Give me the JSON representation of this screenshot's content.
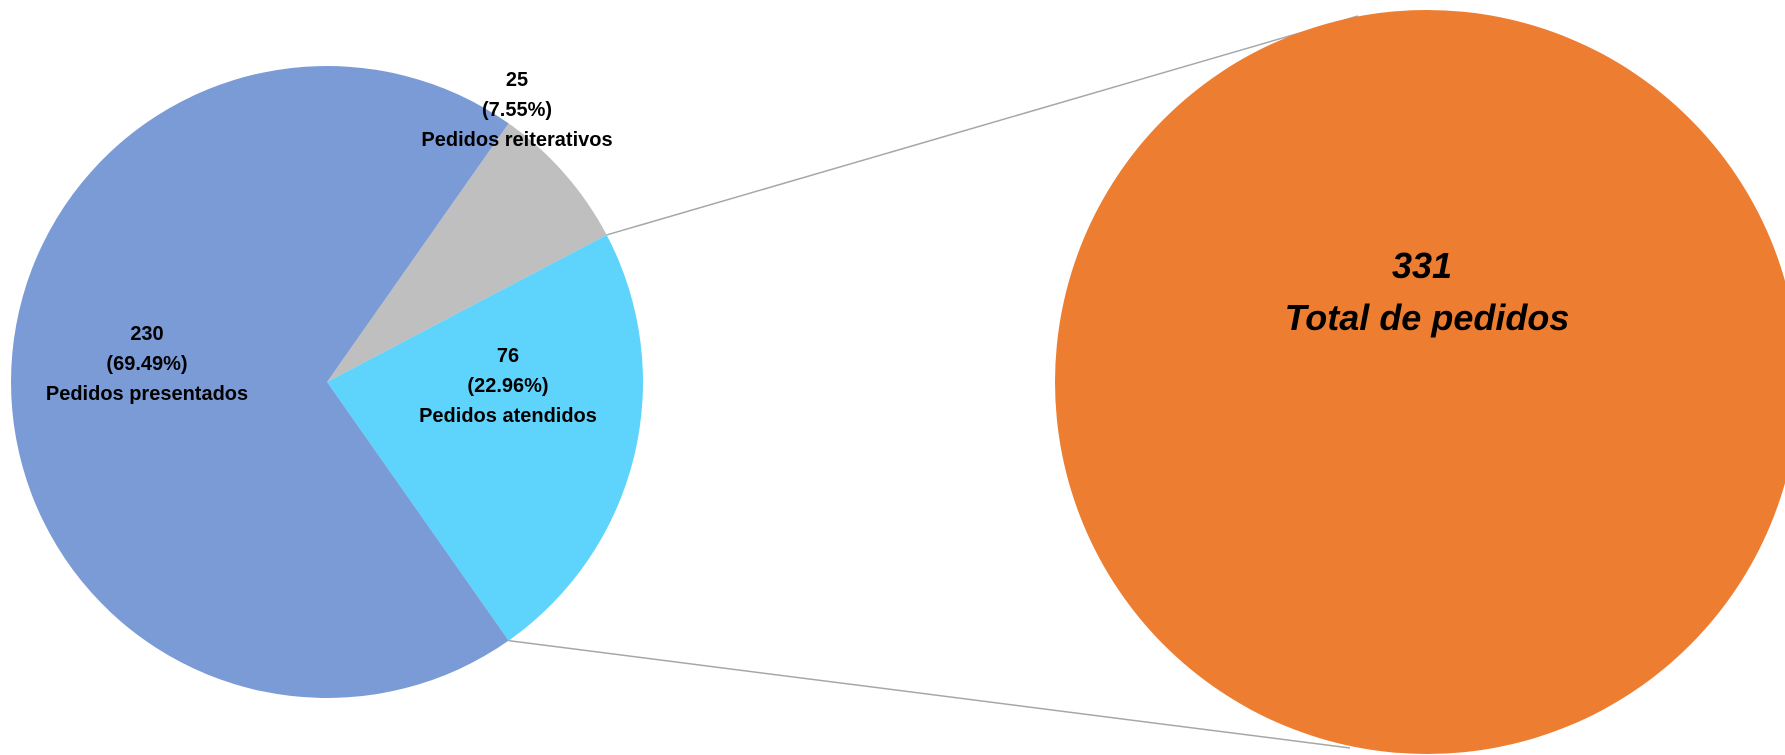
{
  "chart_data": {
    "type": "pie",
    "slices": [
      {
        "value": 230,
        "percent_label": "(69.49%)",
        "name": "Pedidos presentados",
        "color": "#7B9BD6"
      },
      {
        "value": 25,
        "percent_label": "(7.55%)",
        "name": "Pedidos reiterativos",
        "color": "#BFBFBF"
      },
      {
        "value": 76,
        "percent_label": "(22.96%)",
        "name": "Pedidos atendidos",
        "color": "#5ED4FD"
      }
    ],
    "total": {
      "value": 331,
      "label": "Total de pedidos",
      "color": "#ED7D31"
    },
    "connector_color": "#A6A6A6"
  }
}
